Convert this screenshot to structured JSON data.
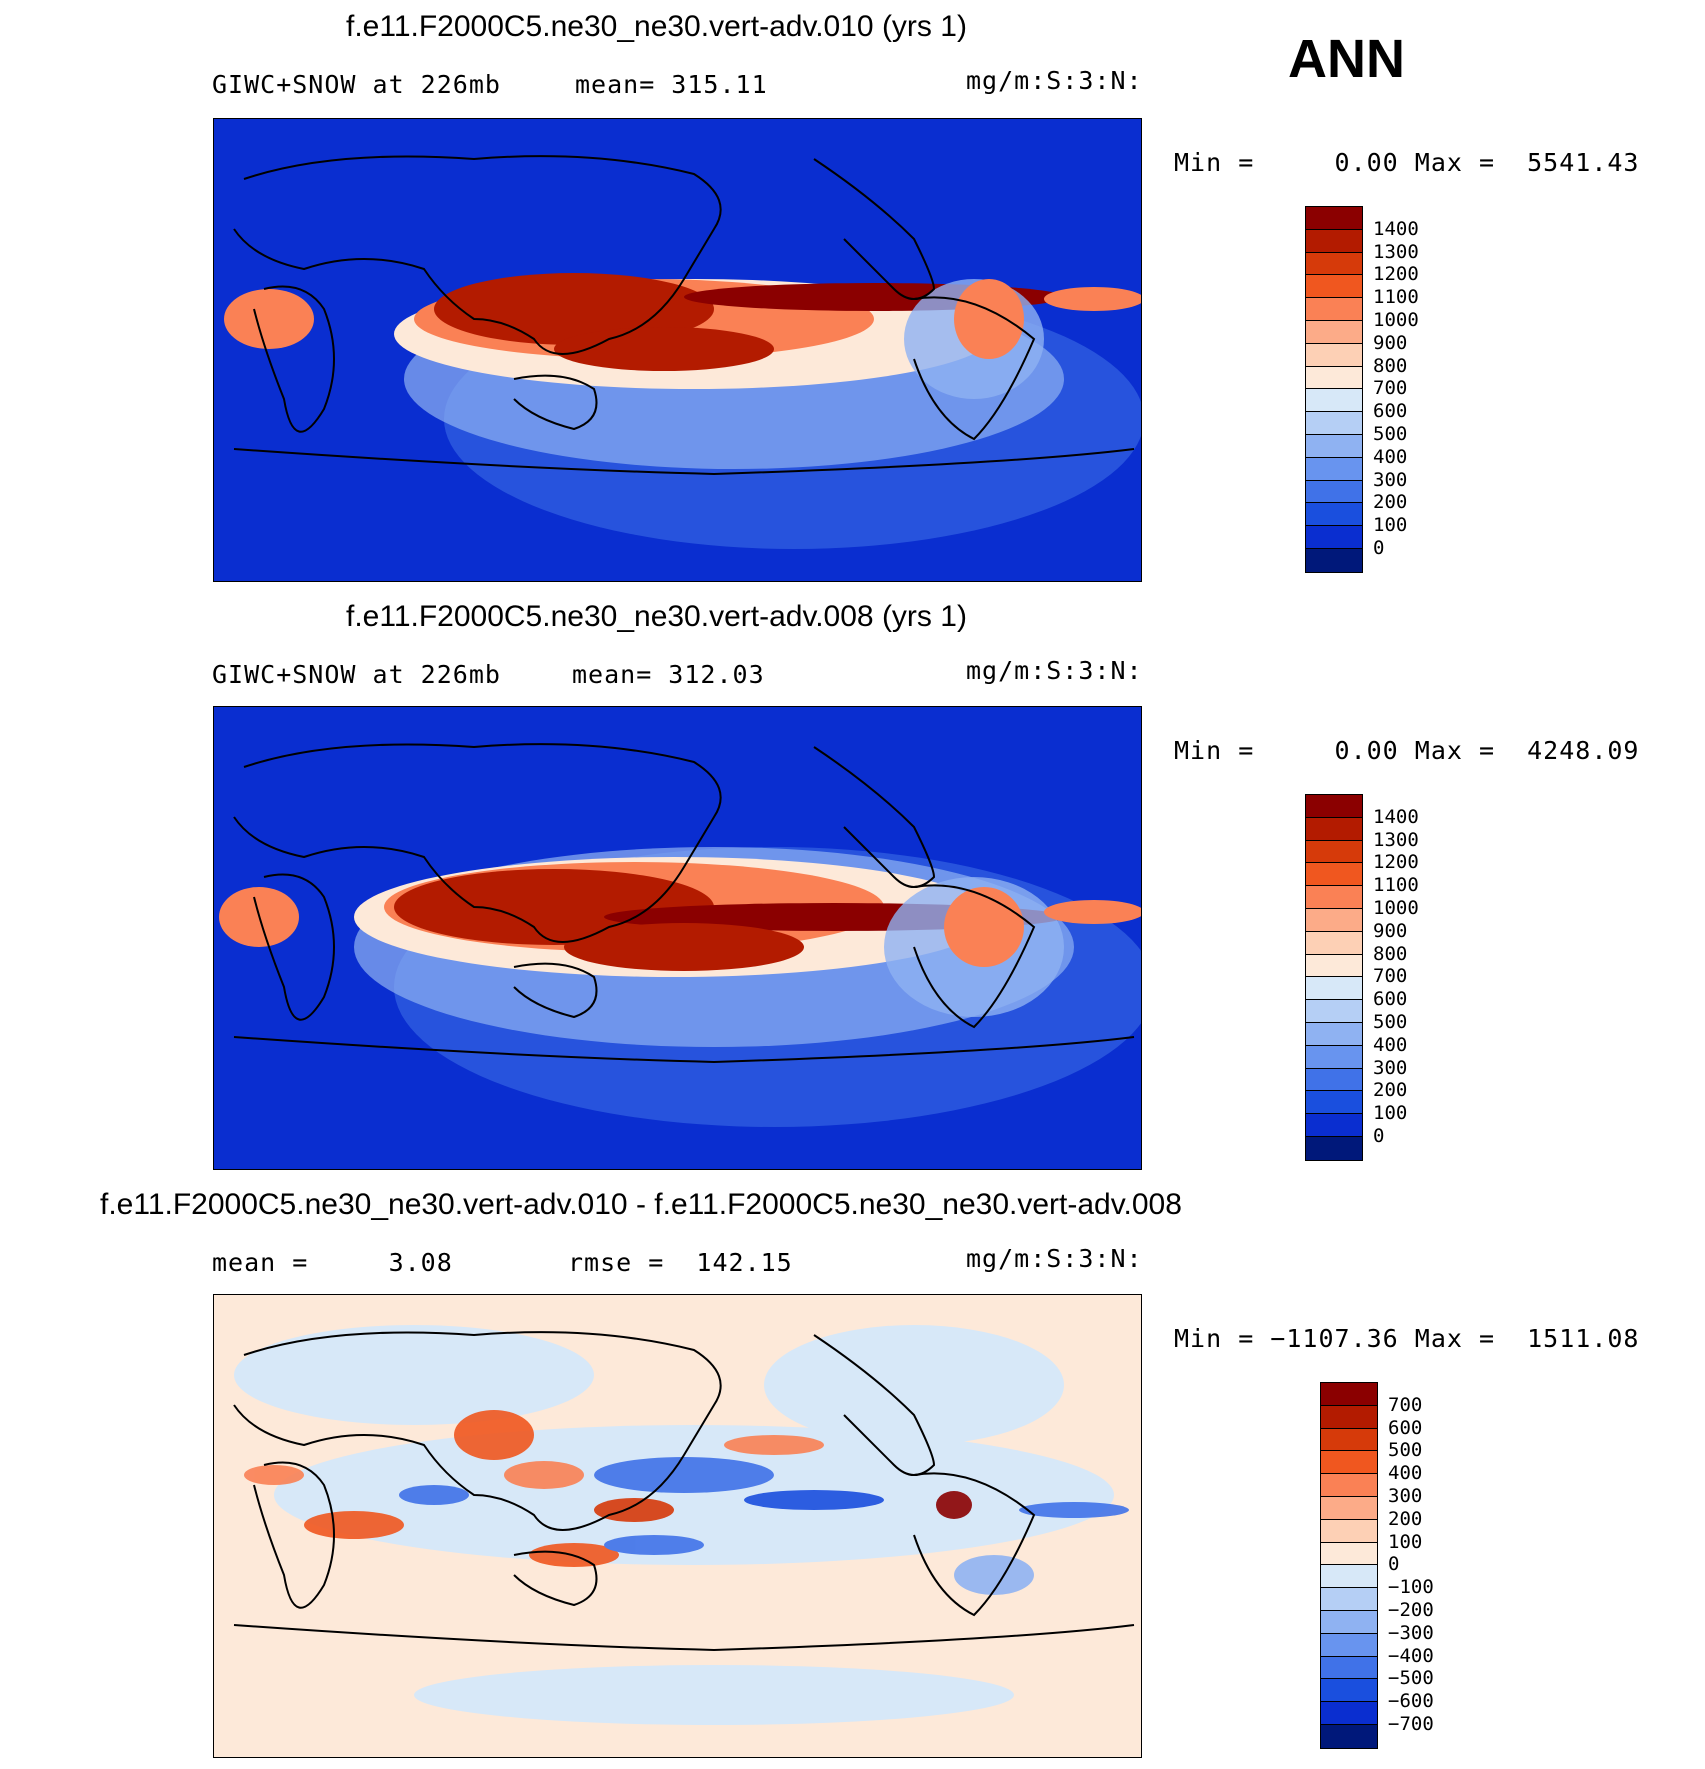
{
  "season": "ANN",
  "panels": [
    {
      "title": "f.e11.F2000C5.ne30_ne30.vert-adv.010 (yrs 1)",
      "left_text": "GIWC+SNOW at 226mb",
      "mid_text": "mean= 315.11",
      "units": "mg/m:S:3:N:",
      "minmax": "Min =     0.00 Max =  5541.43",
      "colorbar": {
        "labels": [
          "1400",
          "1300",
          "1200",
          "1100",
          "1000",
          "900",
          "800",
          "700",
          "600",
          "500",
          "400",
          "300",
          "200",
          "100",
          "0"
        ],
        "colors": [
          "#8b0000",
          "#b31b00",
          "#d63a0a",
          "#f0571f",
          "#fa8155",
          "#fcab88",
          "#fdd0b5",
          "#fde9d9",
          "#d7e8f8",
          "#b5cff5",
          "#8fb2f2",
          "#6894ef",
          "#4072e8",
          "#1a4fde",
          "#0a2ed0",
          "#00187a"
        ]
      }
    },
    {
      "title": "f.e11.F2000C5.ne30_ne30.vert-adv.008 (yrs 1)",
      "left_text": "GIWC+SNOW at 226mb",
      "mid_text": "mean= 312.03",
      "units": "mg/m:S:3:N:",
      "minmax": "Min =     0.00 Max =  4248.09",
      "colorbar": {
        "labels": [
          "1400",
          "1300",
          "1200",
          "1100",
          "1000",
          "900",
          "800",
          "700",
          "600",
          "500",
          "400",
          "300",
          "200",
          "100",
          "0"
        ],
        "colors": [
          "#8b0000",
          "#b31b00",
          "#d63a0a",
          "#f0571f",
          "#fa8155",
          "#fcab88",
          "#fdd0b5",
          "#fde9d9",
          "#d7e8f8",
          "#b5cff5",
          "#8fb2f2",
          "#6894ef",
          "#4072e8",
          "#1a4fde",
          "#0a2ed0",
          "#00187a"
        ]
      }
    },
    {
      "title": "f.e11.F2000C5.ne30_ne30.vert-adv.010 - f.e11.F2000C5.ne30_ne30.vert-adv.008",
      "left_text": "mean =     3.08",
      "mid_text": "rmse =  142.15",
      "units": "mg/m:S:3:N:",
      "minmax": "Min = −1107.36 Max =  1511.08",
      "colorbar": {
        "labels": [
          "700",
          "600",
          "500",
          "400",
          "300",
          "200",
          "100",
          "0",
          "−100",
          "−200",
          "−300",
          "−400",
          "−500",
          "−600",
          "−700"
        ],
        "colors": [
          "#8b0000",
          "#b31b00",
          "#d63a0a",
          "#f0571f",
          "#fa8155",
          "#fcab88",
          "#fdd0b5",
          "#fde9d9",
          "#d7e8f8",
          "#b5cff5",
          "#8fb2f2",
          "#6894ef",
          "#4072e8",
          "#1a4fde",
          "#0a2ed0",
          "#00187a"
        ]
      }
    }
  ],
  "chart_data": [
    {
      "type": "heatmap",
      "title": "f.e11.F2000C5.ne30_ne30.vert-adv.010 (yrs 1)",
      "variable": "GIWC+SNOW at 226mb",
      "mean": 315.11,
      "units": "mg/m:S:3:N:",
      "min": 0.0,
      "max": 5541.43,
      "contour_levels": [
        0,
        100,
        200,
        300,
        400,
        500,
        600,
        700,
        800,
        900,
        1000,
        1100,
        1200,
        1300,
        1400
      ]
    },
    {
      "type": "heatmap",
      "title": "f.e11.F2000C5.ne30_ne30.vert-adv.008 (yrs 1)",
      "variable": "GIWC+SNOW at 226mb",
      "mean": 312.03,
      "units": "mg/m:S:3:N:",
      "min": 0.0,
      "max": 4248.09,
      "contour_levels": [
        0,
        100,
        200,
        300,
        400,
        500,
        600,
        700,
        800,
        900,
        1000,
        1100,
        1200,
        1300,
        1400
      ]
    },
    {
      "type": "heatmap",
      "title": "f.e11.F2000C5.ne30_ne30.vert-adv.010 - f.e11.F2000C5.ne30_ne30.vert-adv.008",
      "mean": 3.08,
      "rmse": 142.15,
      "units": "mg/m:S:3:N:",
      "min": -1107.36,
      "max": 1511.08,
      "contour_levels": [
        -700,
        -600,
        -500,
        -400,
        -300,
        -200,
        -100,
        0,
        100,
        200,
        300,
        400,
        500,
        600,
        700
      ]
    }
  ]
}
